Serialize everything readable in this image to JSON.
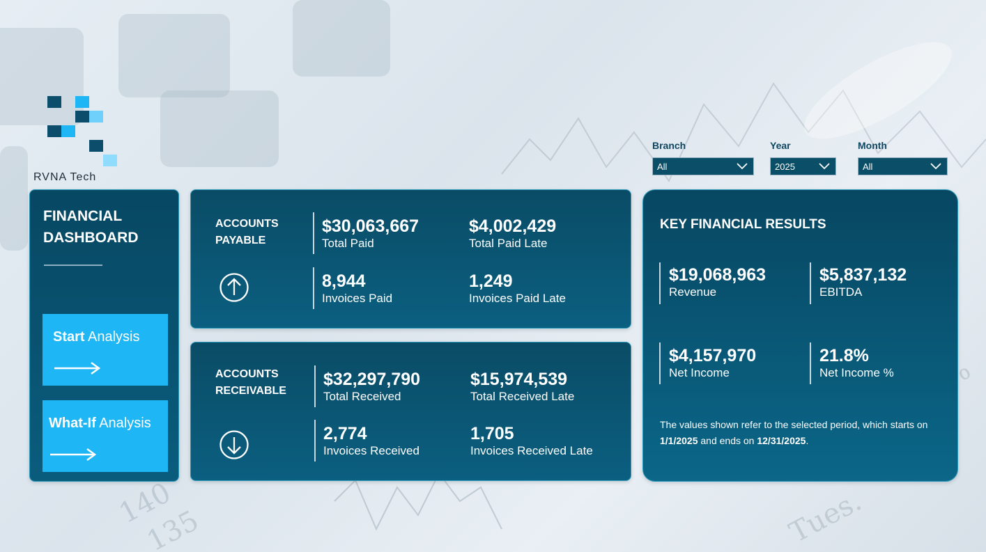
{
  "logo": {
    "text": "RVNA Tech"
  },
  "filters": [
    {
      "label": "Branch",
      "value": "All"
    },
    {
      "label": "Year",
      "value": "2025"
    },
    {
      "label": "Month",
      "value": "All"
    }
  ],
  "sidebar": {
    "title_line1": "FINANCIAL",
    "title_line2": "DASHBOARD",
    "buttons": [
      {
        "bold": "Start",
        "rest": " Analysis"
      },
      {
        "bold": "What-If",
        "rest": " Analysis"
      }
    ]
  },
  "accounts_payable": {
    "heading_line1": "ACCOUNTS",
    "heading_line2": "PAYABLE",
    "direction_icon": "arrow-up-circle-icon",
    "metrics": [
      {
        "value": "$30,063,667",
        "caption": "Total Paid"
      },
      {
        "value": "$4,002,429",
        "caption": "Total Paid Late"
      },
      {
        "value": "8,944",
        "caption": "Invoices Paid"
      },
      {
        "value": "1,249",
        "caption": "Invoices Paid Late"
      }
    ]
  },
  "accounts_receivable": {
    "heading_line1": "ACCOUNTS",
    "heading_line2": "RECEIVABLE",
    "direction_icon": "arrow-down-circle-icon",
    "metrics": [
      {
        "value": "$32,297,790",
        "caption": "Total Received"
      },
      {
        "value": "$15,974,539",
        "caption": "Total Received Late"
      },
      {
        "value": "2,774",
        "caption": "Invoices Received"
      },
      {
        "value": "1,705",
        "caption": "Invoices Received Late"
      }
    ]
  },
  "key_results": {
    "title": "KEY FINANCIAL RESULTS",
    "metrics": [
      {
        "value": "$19,068,963",
        "caption": "Revenue"
      },
      {
        "value": "$5,837,132",
        "caption": "EBITDA"
      },
      {
        "value": "$4,157,970",
        "caption": "Net Income"
      },
      {
        "value": "21.8%",
        "caption": "Net Income %"
      }
    ],
    "note": {
      "part1": "The values shown refer to the selected period, which starts on ",
      "start_date": "1/1/2025",
      "part2": " and ends on ",
      "end_date": "12/31/2025",
      "part3": "."
    }
  },
  "colors": {
    "panel_dark": "#0a4c66",
    "panel_light": "#0b6688",
    "accent_button": "#1fb6f5",
    "panel_border": "#2d9bbd"
  }
}
